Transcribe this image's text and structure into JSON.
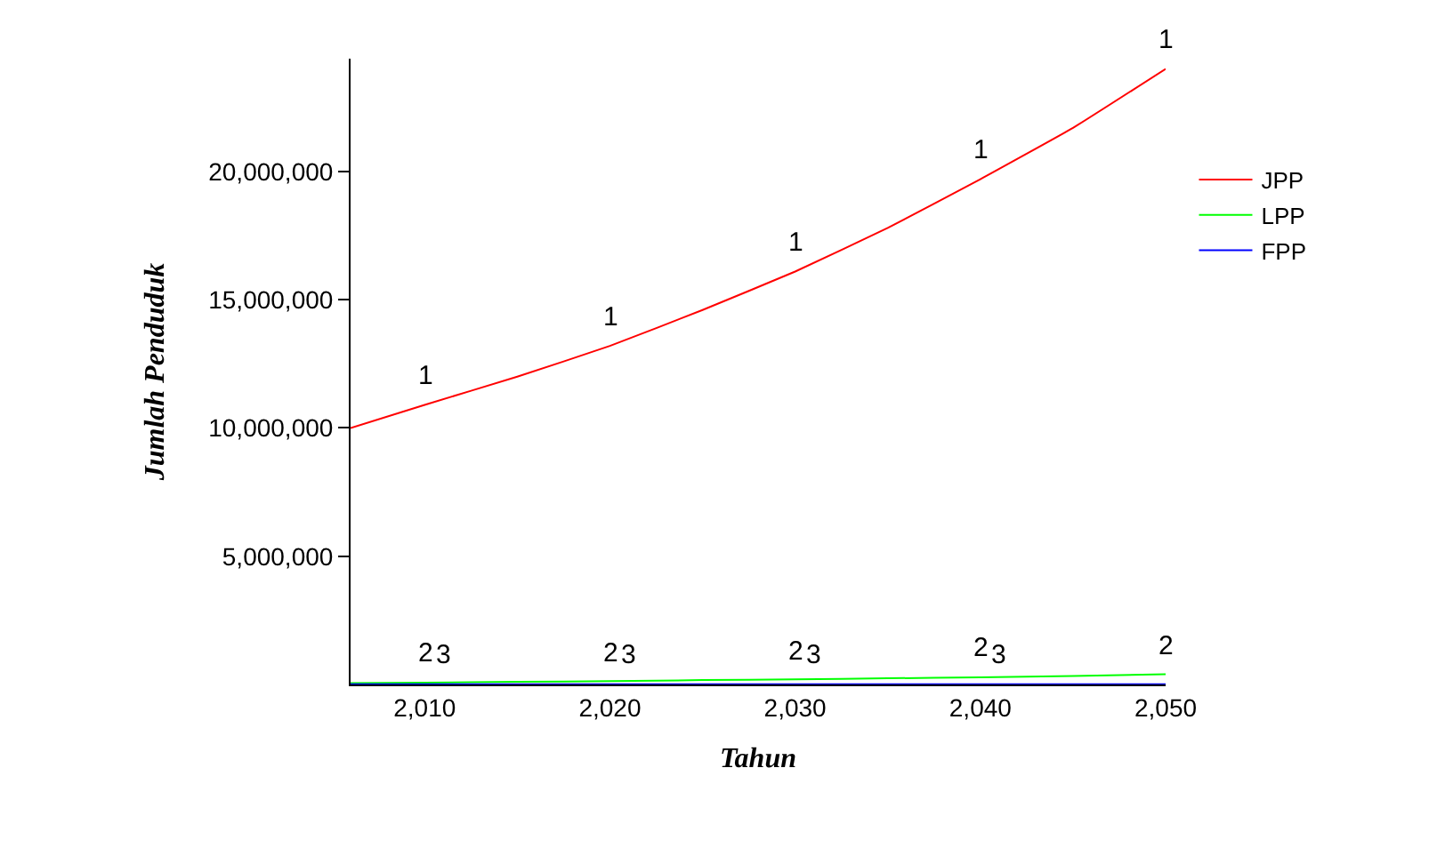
{
  "chart_data": {
    "type": "line",
    "xlabel": "Tahun",
    "ylabel": "Jumlah Penduduk",
    "x": [
      2006,
      2010,
      2015,
      2020,
      2025,
      2030,
      2035,
      2040,
      2045,
      2050
    ],
    "series": [
      {
        "name": "JPP",
        "color": "#ff0000",
        "values": [
          10000000,
          10900000,
          12000000,
          13200000,
          14600000,
          16100000,
          17800000,
          19700000,
          21700000,
          24000000
        ]
      },
      {
        "name": "LPP",
        "color": "#00ff00",
        "values": [
          50000,
          70000,
          100000,
          130000,
          170000,
          200000,
          240000,
          280000,
          330000,
          400000
        ]
      },
      {
        "name": "FPP",
        "color": "#0000ff",
        "values": [
          10000,
          10000,
          10000,
          10000,
          10000,
          10000,
          10000,
          10000,
          10000,
          10000
        ]
      }
    ],
    "xlim": [
      2006,
      2050
    ],
    "ylim": [
      0,
      24400000
    ],
    "xticks": [
      {
        "value": 2010,
        "label": "2,010"
      },
      {
        "value": 2020,
        "label": "2,020"
      },
      {
        "value": 2030,
        "label": "2,030"
      },
      {
        "value": 2040,
        "label": "2,040"
      },
      {
        "value": 2050,
        "label": "2,050"
      }
    ],
    "yticks": [
      {
        "value": 5000000,
        "label": "5,000,000"
      },
      {
        "value": 10000000,
        "label": "10,000,000"
      },
      {
        "value": 15000000,
        "label": "15,000,000"
      },
      {
        "value": 20000000,
        "label": "20,000,000"
      }
    ],
    "legend": "right",
    "marker": "none",
    "line_style": "solid",
    "annotations": [
      {
        "text": "1",
        "x": 2010,
        "y": 10900000
      },
      {
        "text": "1",
        "x": 2020,
        "y": 13200000
      },
      {
        "text": "1",
        "x": 2030,
        "y": 16100000
      },
      {
        "text": "1",
        "x": 2040,
        "y": 19700000
      },
      {
        "text": "1",
        "x": 2050,
        "y": 24000000
      },
      {
        "text": "2",
        "x": 2010,
        "y": 70000
      },
      {
        "text": "2",
        "x": 2020,
        "y": 130000
      },
      {
        "text": "2",
        "x": 2030,
        "y": 200000
      },
      {
        "text": "2",
        "x": 2040,
        "y": 280000
      },
      {
        "text": "2",
        "x": 2050,
        "y": 400000
      },
      {
        "text": "3",
        "x": 2011,
        "y": 10000
      },
      {
        "text": "3",
        "x": 2021,
        "y": 10000
      },
      {
        "text": "3",
        "x": 2031,
        "y": 10000
      },
      {
        "text": "3",
        "x": 2041,
        "y": 10000
      }
    ]
  }
}
